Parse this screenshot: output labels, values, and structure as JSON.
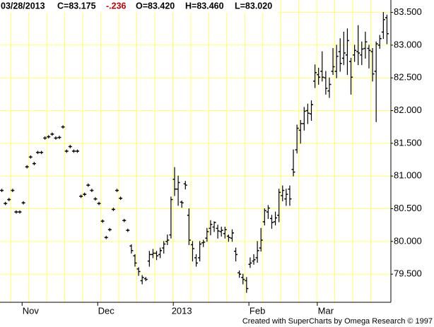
{
  "header": {
    "date": "03/28/2013",
    "close": "C=83.175",
    "change": "-.236",
    "open": "O=83.420",
    "high": "H=83.460",
    "low": "L=83.020"
  },
  "footer": "Created with SuperCharts by Omega Research © 1997",
  "chart_data": {
    "type": "ohlc",
    "color": "#000000",
    "grid": true,
    "grid_color": "#ffff66",
    "ylim": [
      79.07,
      83.69
    ],
    "yticks": [
      {
        "value": 79.5,
        "label": "79.500"
      },
      {
        "value": 80,
        "label": "80.000"
      },
      {
        "value": 80.5,
        "label": "80.500"
      },
      {
        "value": 81,
        "label": "81.000"
      },
      {
        "value": 81.5,
        "label": "81.500"
      },
      {
        "value": 82,
        "label": "82.000"
      },
      {
        "value": 82.5,
        "label": "82.500"
      },
      {
        "value": 83,
        "label": "83.000"
      },
      {
        "value": 83.5,
        "label": "83.500"
      }
    ],
    "categories": [
      null,
      null,
      null,
      null,
      null,
      null,
      null,
      null,
      "Nov",
      null,
      null,
      null,
      null,
      null,
      null,
      null,
      null,
      null,
      null,
      null,
      null,
      null,
      null,
      null,
      null,
      null,
      null,
      null,
      null,
      "Dec",
      null,
      null,
      null,
      null,
      null,
      null,
      null,
      null,
      null,
      null,
      null,
      null,
      null,
      null,
      null,
      null,
      null,
      null,
      null,
      null,
      "2013",
      null,
      null,
      null,
      null,
      null,
      null,
      null,
      null,
      null,
      null,
      null,
      null,
      null,
      null,
      null,
      null,
      null,
      null,
      null,
      null,
      "Feb",
      null,
      null,
      null,
      null,
      null,
      null,
      null,
      null,
      null,
      null,
      null,
      null,
      null,
      null,
      null,
      null,
      null,
      null,
      "Mar",
      null,
      null,
      null,
      null,
      null,
      null,
      null,
      null,
      null,
      null,
      null,
      null,
      null,
      null,
      null,
      null,
      null
    ],
    "open": [
      80.78,
      80.58,
      80.64,
      80.78,
      80.45,
      80.45,
      80.59,
      81.14,
      81.29,
      81.19,
      81.36,
      81.36,
      81.58,
      81.6,
      81.64,
      81.58,
      81.59,
      81.75,
      81.38,
      81.45,
      81.38,
      81.38,
      80.69,
      80.72,
      80.86,
      80.78,
      80.65,
      80.58,
      80.31,
      80.06,
      80.18,
      80.49,
      80.78,
      80.66,
      80.32,
      80.17,
      79.93,
      79.78,
      79.58,
      79.4,
      79.43,
      79.7,
      79.8,
      79.82,
      79.8,
      79.9,
      80.0,
      80.1,
      80.95,
      80.8,
      80.6,
      80.88,
      80.4,
      79.95,
      79.75,
      79.75,
      79.98,
      80.05,
      80.2,
      80.22,
      80.2,
      80.15,
      80.12,
      80.08,
      80.05,
      79.85,
      79.52,
      79.45,
      79.4,
      79.65,
      79.7,
      79.75,
      79.9,
      80.3,
      80.45,
      80.35,
      80.3,
      80.4,
      80.7,
      80.65,
      80.8,
      81.1,
      81.4,
      81.7,
      81.8,
      82.0,
      81.95,
      82.45,
      82.55,
      82.6,
      82.5,
      82.3,
      82.6,
      82.6,
      82.9,
      82.8,
      82.85,
      82.75,
      82.85,
      82.9,
      82.85,
      82.95,
      82.95,
      82.9,
      82.6,
      83.0,
      83.2,
      83.42
    ],
    "high": [
      80.8,
      80.6,
      80.66,
      80.8,
      80.47,
      80.47,
      80.61,
      81.16,
      81.31,
      81.21,
      81.38,
      81.38,
      81.6,
      81.62,
      81.66,
      81.6,
      81.61,
      81.77,
      81.4,
      81.47,
      81.4,
      81.4,
      80.71,
      80.74,
      80.88,
      80.8,
      80.67,
      80.6,
      80.33,
      80.08,
      80.2,
      80.51,
      80.8,
      80.68,
      80.34,
      80.19,
      79.95,
      79.8,
      79.6,
      79.48,
      79.45,
      79.85,
      79.88,
      79.85,
      79.9,
      80.0,
      80.1,
      80.68,
      81.13,
      81.0,
      80.62,
      80.92,
      80.5,
      80.0,
      79.8,
      80.0,
      80.02,
      80.2,
      80.32,
      80.3,
      80.25,
      80.22,
      80.22,
      80.1,
      80.18,
      79.9,
      79.55,
      79.5,
      79.45,
      79.75,
      79.8,
      80.0,
      80.2,
      80.5,
      80.55,
      80.4,
      80.45,
      80.8,
      80.85,
      80.8,
      80.85,
      81.4,
      81.78,
      81.85,
      82.05,
      82.1,
      82.15,
      82.7,
      82.65,
      82.9,
      82.6,
      82.5,
      82.95,
      83.0,
      83.1,
      83.2,
      83.25,
      82.8,
      83.0,
      83.3,
      83.05,
      83.2,
      83.0,
      82.95,
      83.05,
      83.15,
      83.5,
      83.46
    ],
    "low": [
      80.76,
      80.56,
      80.62,
      80.76,
      80.43,
      80.43,
      80.57,
      81.12,
      81.27,
      81.17,
      81.34,
      81.34,
      81.56,
      81.58,
      81.62,
      81.56,
      81.57,
      81.73,
      81.36,
      81.43,
      81.36,
      81.36,
      80.67,
      80.7,
      80.84,
      80.76,
      80.63,
      80.56,
      80.29,
      80.04,
      80.16,
      80.47,
      80.76,
      80.64,
      80.3,
      80.15,
      79.82,
      79.62,
      79.48,
      79.35,
      79.4,
      79.62,
      79.75,
      79.72,
      79.75,
      79.82,
      79.95,
      80.05,
      80.7,
      80.55,
      80.52,
      80.8,
      79.95,
      79.7,
      79.62,
      79.7,
      79.92,
      80.0,
      80.1,
      80.15,
      80.05,
      80.08,
      80.05,
      80.0,
      80.0,
      79.7,
      79.45,
      79.35,
      79.22,
      79.6,
      79.65,
      79.68,
      79.85,
      80.25,
      80.35,
      80.2,
      80.25,
      80.3,
      80.62,
      80.55,
      80.55,
      81.0,
      81.35,
      81.5,
      81.7,
      81.8,
      81.85,
      82.35,
      82.4,
      82.45,
      82.25,
      82.2,
      82.55,
      82.5,
      82.6,
      82.7,
      82.55,
      82.25,
      82.75,
      82.7,
      82.7,
      82.8,
      82.65,
      82.45,
      81.83,
      82.95,
      83.1,
      83.02
    ],
    "close": [
      80.78,
      80.58,
      80.64,
      80.78,
      80.45,
      80.45,
      80.59,
      81.14,
      81.29,
      81.19,
      81.36,
      81.36,
      81.58,
      81.6,
      81.64,
      81.58,
      81.59,
      81.75,
      81.38,
      81.45,
      81.38,
      81.38,
      80.69,
      80.72,
      80.86,
      80.78,
      80.65,
      80.58,
      80.31,
      80.06,
      80.18,
      80.49,
      80.78,
      80.66,
      80.32,
      80.17,
      79.86,
      79.67,
      79.54,
      79.45,
      79.42,
      79.8,
      79.82,
      79.78,
      79.86,
      79.96,
      80.02,
      80.64,
      80.8,
      80.9,
      80.59,
      80.86,
      80.02,
      79.89,
      79.67,
      79.96,
      79.99,
      80.15,
      80.26,
      80.29,
      80.16,
      80.17,
      80.18,
      80.06,
      80.13,
      79.8,
      79.5,
      79.42,
      79.28,
      79.67,
      79.72,
      79.86,
      80.02,
      80.47,
      80.51,
      80.29,
      80.36,
      80.75,
      80.78,
      80.72,
      80.65,
      81.06,
      81.73,
      81.8,
      81.99,
      81.96,
      82.09,
      82.58,
      82.51,
      82.51,
      82.34,
      82.4,
      82.67,
      82.83,
      82.72,
      82.88,
      83.07,
      82.51,
      82.92,
      82.88,
      82.94,
      83.05,
      82.92,
      82.56,
      83.02,
      83.1,
      83.39,
      83.175
    ]
  }
}
